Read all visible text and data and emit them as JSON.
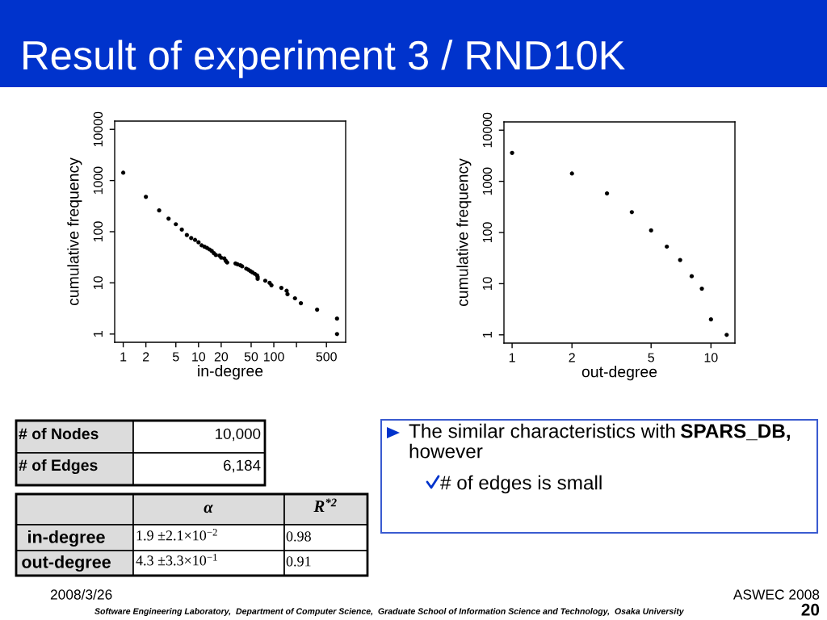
{
  "chart_data": [
    {
      "type": "other",
      "title": "Result of experiment 3 / RND10K"
    },
    {
      "type": "scatter",
      "xlabel": "in-degree",
      "ylabel": "cumulative frequency",
      "log": "xy",
      "marker": "circle",
      "x": [
        1,
        2,
        3,
        4,
        5,
        6,
        7,
        8,
        9,
        10,
        11,
        12,
        13,
        14,
        15,
        16,
        17,
        19,
        20,
        22,
        23,
        24,
        31,
        33,
        36,
        38,
        43,
        46,
        49,
        52,
        56,
        60,
        61,
        61,
        77,
        88,
        93,
        126,
        148,
        152,
        191,
        229,
        376,
        691,
        691
      ],
      "series": [
        {
          "color": "#000000",
          "values": [
            1420,
            480,
            260,
            180,
            140,
            110,
            86,
            75,
            69,
            62,
            54,
            51,
            48,
            45,
            42,
            38,
            35,
            34,
            31,
            30,
            27,
            25,
            24,
            23,
            22,
            21,
            19,
            18,
            17,
            16,
            15,
            14,
            13,
            12,
            11,
            10,
            9,
            8,
            7,
            6,
            5,
            4,
            3,
            2,
            1
          ]
        }
      ],
      "xlim": [
        0.77,
        900
      ],
      "ylim": [
        0.69,
        14500
      ],
      "xticks": [
        1,
        2,
        5,
        10,
        20,
        50,
        100,
        {
          "value": 200,
          "label": null
        },
        500
      ],
      "yticks": [
        1,
        10,
        100,
        1000,
        10000
      ]
    },
    {
      "type": "scatter",
      "xlabel": "out-degree",
      "ylabel": "cumulative frequency",
      "log": "xy",
      "marker": "circle",
      "x": [
        1,
        2,
        3,
        4,
        5,
        6,
        7,
        8,
        9,
        10,
        12
      ],
      "series": [
        {
          "color": "#000000",
          "values": [
            3600,
            1420,
            580,
            250,
            110,
            53,
            29,
            14,
            8,
            2,
            1
          ]
        }
      ],
      "xlim": [
        0.91,
        13.2
      ],
      "ylim": [
        0.69,
        14500
      ],
      "xticks": [
        1,
        2,
        5,
        10
      ],
      "yticks": [
        1,
        10,
        100,
        1000,
        10000
      ]
    },
    {
      "type": "other",
      "annotations": [
        "# of Nodes",
        "10,000",
        "# of Edges",
        "6,184",
        "α",
        "R$^{*2}$",
        "in-degree",
        "1.9 ±2.1×10$^{−2}$",
        "0.98",
        "out-degree",
        "4.3 ±3.3×10$^{−1}$",
        "0.91",
        "The similar characteristics with",
        "SPARS_DB,",
        "however",
        "# of edges is small",
        "2008/3/26",
        "ASWEC 2008",
        "Software Engineering Laboratory,  Department of Computer Science,  Graduate School of Information Science and Technology,  Osaka University",
        "20"
      ]
    }
  ]
}
